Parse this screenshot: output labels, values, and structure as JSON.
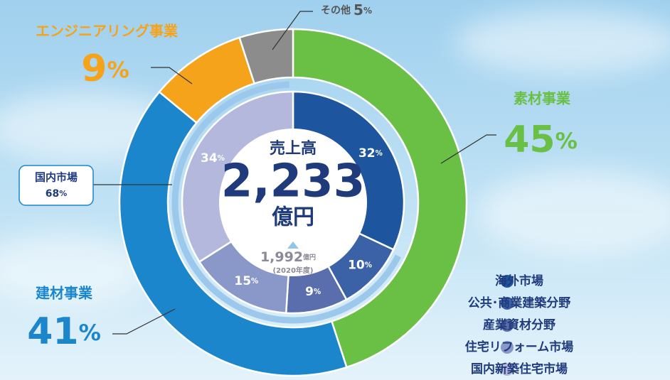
{
  "chart_data": {
    "type": "donut",
    "unit": "%",
    "outer": {
      "series": [
        {
          "name": "素材事業",
          "color": "#6abf45",
          "value": 45
        },
        {
          "name": "建材事業",
          "color": "#1b86cc",
          "value": 41
        },
        {
          "name": "エンジニアリング事業",
          "color": "#f5a31a",
          "value": 9
        },
        {
          "name": "その他",
          "color": "#8c8c8c",
          "value": 5
        }
      ]
    },
    "inner": {
      "series": [
        {
          "name": "海外市場",
          "color": "#1d559e",
          "value": 32
        },
        {
          "name": "公共･商業建築分野",
          "color": "#3b61a6",
          "value": 10
        },
        {
          "name": "産業資材分野",
          "color": "#5a6dad",
          "value": 9
        },
        {
          "name": "住宅リフォーム市場",
          "color": "#8a98c9",
          "value": 15
        },
        {
          "name": "国内新築住宅市場",
          "color": "#b3b8dc",
          "value": 34
        }
      ]
    },
    "domestic": {
      "label": "国内市場",
      "value": 68
    },
    "center": {
      "title": "売上高",
      "total": {
        "value": 2233,
        "label": "2,233"
      },
      "unit": "億円",
      "previous": {
        "value": 1992,
        "label": "1,992"
      },
      "previous_unit": "億円",
      "previous_period": "(2020年度)"
    }
  }
}
